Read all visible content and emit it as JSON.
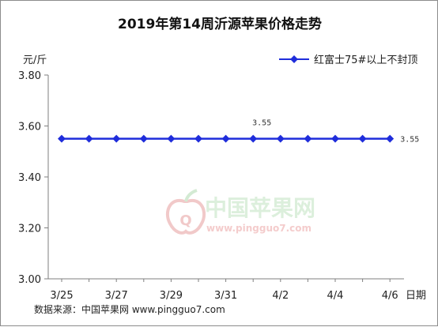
{
  "chart_data": {
    "type": "line",
    "title": "2019年第14周沂源苹果价格走势",
    "ylabel": "元/斤",
    "xlabel": "日期",
    "ylim": [
      3.0,
      3.8
    ],
    "yticks": [
      "3.00",
      "3.20",
      "3.40",
      "3.60",
      "3.80"
    ],
    "x": [
      "3/25",
      "3/26",
      "3/27",
      "3/28",
      "3/29",
      "3/30",
      "3/31",
      "4/1",
      "4/2",
      "4/3",
      "4/4",
      "4/5",
      "4/6"
    ],
    "xtick_labels": [
      "3/25",
      "",
      "3/27",
      "",
      "3/29",
      "",
      "3/31",
      "",
      "4/2",
      "",
      "4/4",
      "",
      "4/6"
    ],
    "series": [
      {
        "name": "红富士75#以上不封顶",
        "color": "#1f2ddb",
        "values": [
          3.55,
          3.55,
          3.55,
          3.55,
          3.55,
          3.55,
          3.55,
          3.55,
          3.55,
          3.55,
          3.55,
          3.55,
          3.55
        ]
      }
    ],
    "data_labels": [
      {
        "index": 7,
        "text": "3.55"
      },
      {
        "index": 12,
        "text": "3.55"
      }
    ],
    "legend_position": "top-right",
    "grid": false
  },
  "watermark": {
    "text": "中国苹果网",
    "url": "www.pingguo7.com"
  },
  "source": "数据来源：中国苹果网 www.pingguo7.com",
  "colors": {
    "series": "#1f2ddb",
    "axis": "#7f7f7f",
    "watermark_green": "#d9eed9",
    "watermark_red": "#f0c4c4"
  }
}
